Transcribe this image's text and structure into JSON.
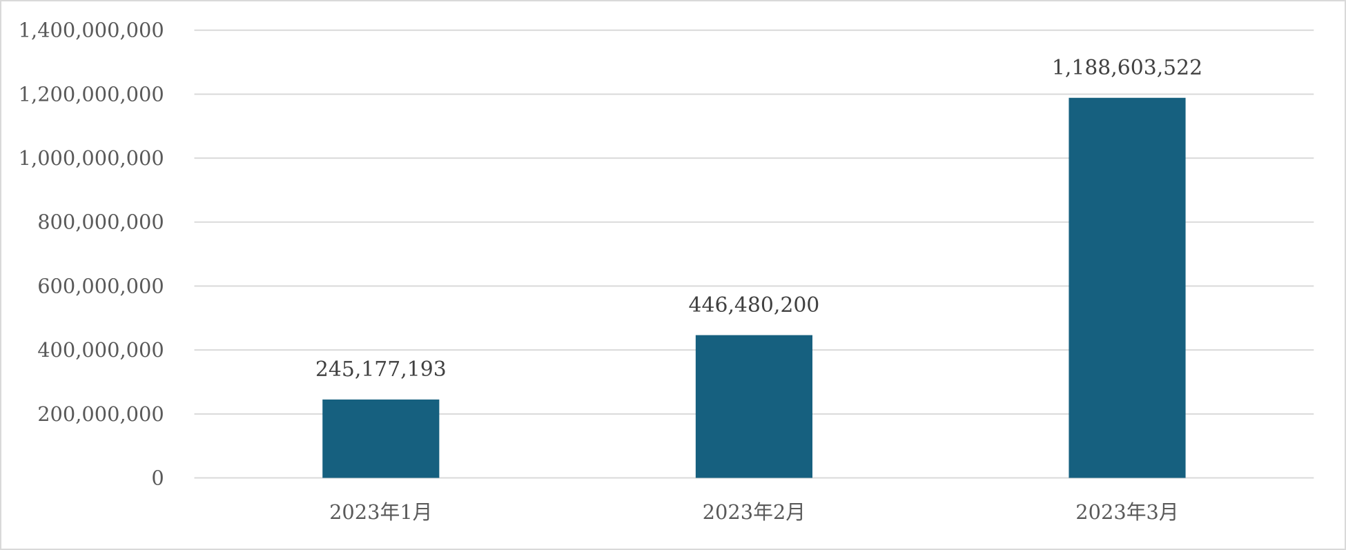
{
  "chart_data": {
    "type": "bar",
    "title": "",
    "xlabel": "",
    "ylabel": "",
    "categories": [
      "2023年1月",
      "2023年2月",
      "2023年3月"
    ],
    "values": [
      245177193,
      446480200,
      1188603522
    ],
    "data_labels": [
      "245,177,193",
      "446,480,200",
      "1,188,603,522"
    ],
    "ylim": [
      0,
      1400000000
    ],
    "y_ticks": [
      0,
      200000000,
      400000000,
      600000000,
      800000000,
      1000000000,
      1200000000,
      1400000000
    ],
    "y_tick_labels": [
      "0",
      "200,000,000",
      "400,000,000",
      "600,000,000",
      "800,000,000",
      "1,000,000,000",
      "1,200,000,000",
      "1,400,000,000"
    ],
    "grid": true,
    "legend": "none",
    "bar_color": "#16607f"
  }
}
